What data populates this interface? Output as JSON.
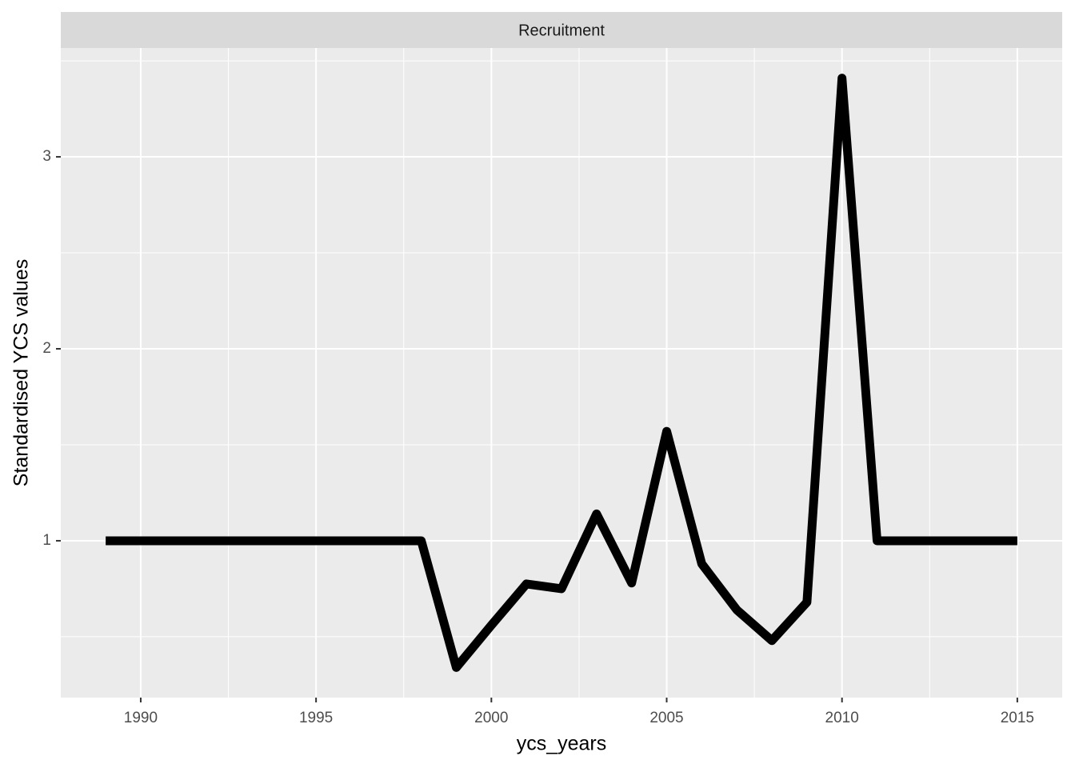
{
  "chart_data": {
    "type": "line",
    "strip_title": "Recruitment",
    "x_label": "ycs_years",
    "y_label": "Standardised YCS values",
    "x": [
      1989,
      1990,
      1991,
      1992,
      1993,
      1994,
      1995,
      1996,
      1997,
      1998,
      1999,
      2000,
      2001,
      2002,
      2003,
      2004,
      2005,
      2006,
      2007,
      2008,
      2009,
      2010,
      2011,
      2012,
      2013,
      2014,
      2015
    ],
    "series": [
      {
        "color": "#000000",
        "values": [
          1,
          1,
          1,
          1,
          1,
          1,
          1,
          1,
          1,
          1,
          0.34,
          0.56,
          0.775,
          0.75,
          1.14,
          0.78,
          1.57,
          0.88,
          0.64,
          0.48,
          0.68,
          3.41,
          1,
          1,
          1,
          1,
          1
        ]
      }
    ],
    "xlim": [
      1987.72,
      2016.28
    ],
    "ylim": [
      0.183,
      3.567
    ],
    "xticks": [
      1990,
      1995,
      2000,
      2005,
      2010,
      2015
    ],
    "yticks": [
      1,
      2,
      3
    ],
    "minor_xticks": [
      1992.5,
      1997.5,
      2002.5,
      2007.5,
      2012.5
    ],
    "minor_yticks": [
      0.5,
      1.5,
      2.5,
      3.5
    ],
    "grid": true
  }
}
